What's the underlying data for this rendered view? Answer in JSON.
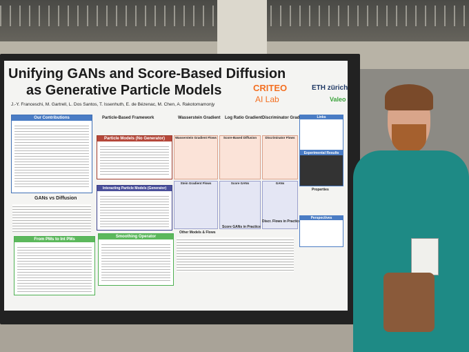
{
  "poster": {
    "title_lines": [
      "Unifying GANs and Score-Based Diffusion",
      "as Generative Particle Models"
    ],
    "authors": "J.-Y. Franceschi, M. Gartrell, L. Dos Santos, T. Issenhuth, E. de Bézenac, M. Chen, A. Rakotomamonjy",
    "logos": {
      "criteo": "CRITEO",
      "lab": "AI Lab",
      "eth": "ETH zürich",
      "valeo": "Valeo"
    },
    "left_sections": [
      "Our Contributions",
      "GANs vs Diffusion"
    ],
    "green_sections": [
      "From PMs to Int PMs",
      "Smoothing Operator"
    ],
    "grid_header": [
      "Particle-Based Framework",
      "Wasserstein Gradient",
      "Log Ratio Gradient",
      "Discriminator Gradient"
    ],
    "row_labels": [
      "Particle Models (No Generator)",
      "Interacting Particle Models (Generator)"
    ],
    "cells": [
      "Wasserstein Gradient Flows",
      "Score-Based Diffusion",
      "Discriminator Flows",
      "Stein Gradient Flows",
      "Score GANs",
      "GANs"
    ],
    "bottom_sections": [
      "Other Models & Flows",
      "Score GANs in Practice",
      "Discr. Flows in Practice"
    ],
    "right_sections": [
      "Links",
      "Experimental Results",
      "Properties",
      "Perspectives"
    ]
  }
}
